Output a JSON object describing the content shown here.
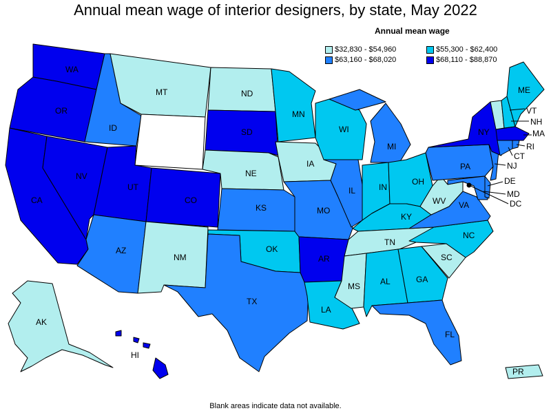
{
  "title": "Annual mean wage of interior designers, by state, May 2022",
  "legend": {
    "title": "Annual mean wage",
    "items": [
      {
        "label": "$32,830 - $54,960",
        "color": "#b2eeee"
      },
      {
        "label": "$55,300 - $62,400",
        "color": "#00c8f0"
      },
      {
        "label": "$63,160 - $68,020",
        "color": "#2080ff"
      },
      {
        "label": "$68,110 - $88,870",
        "color": "#0000ee"
      }
    ]
  },
  "no_data_color": "#ffffff",
  "footnote": "Blank areas indicate data not available.",
  "states": {
    "WA": {
      "tier": 3
    },
    "OR": {
      "tier": 3
    },
    "CA": {
      "tier": 3
    },
    "NV": {
      "tier": 3
    },
    "ID": {
      "tier": 2
    },
    "MT": {
      "tier": 0
    },
    "WY": {
      "tier": null
    },
    "UT": {
      "tier": 3
    },
    "AZ": {
      "tier": 2
    },
    "CO": {
      "tier": 3
    },
    "NM": {
      "tier": 0
    },
    "ND": {
      "tier": 0
    },
    "SD": {
      "tier": 3
    },
    "NE": {
      "tier": 0
    },
    "KS": {
      "tier": 2
    },
    "OK": {
      "tier": 1
    },
    "TX": {
      "tier": 2
    },
    "MN": {
      "tier": 1
    },
    "IA": {
      "tier": 0
    },
    "MO": {
      "tier": 2
    },
    "AR": {
      "tier": 3
    },
    "LA": {
      "tier": 1
    },
    "WI": {
      "tier": 1
    },
    "IL": {
      "tier": 2
    },
    "MI": {
      "tier": 2
    },
    "IN": {
      "tier": 1
    },
    "OH": {
      "tier": 1
    },
    "KY": {
      "tier": 1
    },
    "TN": {
      "tier": 0
    },
    "MS": {
      "tier": 0
    },
    "AL": {
      "tier": 1
    },
    "GA": {
      "tier": 1
    },
    "FL": {
      "tier": 2
    },
    "SC": {
      "tier": 0
    },
    "NC": {
      "tier": 1
    },
    "VA": {
      "tier": 2
    },
    "WV": {
      "tier": 0
    },
    "PA": {
      "tier": 2
    },
    "NY": {
      "tier": 3
    },
    "ME": {
      "tier": 1
    },
    "VT": {
      "tier": 0
    },
    "NH": {
      "tier": 1
    },
    "MA": {
      "tier": 3
    },
    "CT": {
      "tier": 2
    },
    "RI": {
      "tier": 2
    },
    "NJ": {
      "tier": 2
    },
    "DE": {
      "tier": 2
    },
    "MD": {
      "tier": 2
    },
    "DC": {
      "tier": 3
    },
    "AK": {
      "tier": 0
    },
    "HI": {
      "tier": 3
    },
    "PR": {
      "tier": 0
    }
  }
}
